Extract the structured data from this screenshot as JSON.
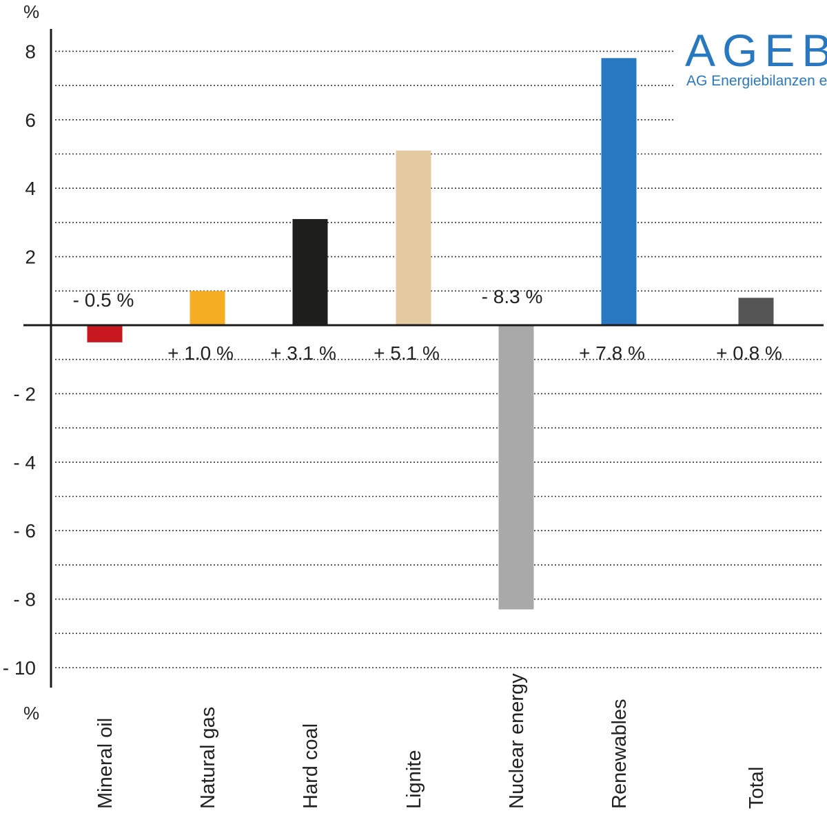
{
  "chart_data": {
    "type": "bar",
    "unit_top": "%",
    "unit_bottom": "%",
    "categories": [
      "Mineral oil",
      "Natural gas",
      "Hard coal",
      "Lignite",
      "Nuclear energy",
      "Renewables",
      "Total"
    ],
    "values": [
      -0.5,
      1.0,
      3.1,
      5.1,
      -8.3,
      7.8,
      0.8
    ],
    "data_labels": [
      "- 0.5  %",
      "+ 1.0 %",
      "+ 3.1 %",
      "+ 5.1 %",
      "- 8.3 %",
      "+ 7.8 %",
      "+ 0.8 %"
    ],
    "colors": [
      "#c8171e",
      "#f5ad23",
      "#1e1e1c",
      "#e3caa0",
      "#a9a9a9",
      "#2778c0",
      "#555555"
    ],
    "y_ticks": [
      8,
      6,
      4,
      2,
      -2,
      -4,
      -6,
      -8,
      -10
    ],
    "y_tick_labels": [
      "8",
      "6",
      "4",
      "2",
      "- 2",
      "- 4",
      "- 6",
      "- 8",
      "- 10"
    ],
    "ylim": [
      -10.6,
      8.8
    ],
    "grid": "dotted, every 1 unit"
  },
  "logo": {
    "title": "AGEB",
    "subtitle": "AG Energiebilanzen e.V."
  }
}
